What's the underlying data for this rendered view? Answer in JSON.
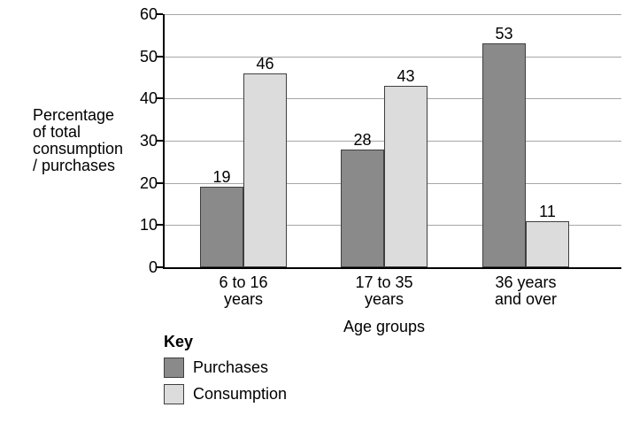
{
  "chart_data": {
    "type": "bar",
    "categories": [
      "6 to 16\nyears",
      "17 to 35\nyears",
      "36 years\nand over"
    ],
    "series": [
      {
        "name": "Purchases",
        "color": "#8a8a8a",
        "values": [
          19,
          28,
          53
        ]
      },
      {
        "name": "Consumption",
        "color": "#dcdcdc",
        "values": [
          46,
          43,
          11
        ]
      }
    ],
    "xlabel": "Age groups",
    "ylabel": "Percentage\nof total\nconsumption\n/ purchases",
    "ylim": [
      0,
      60
    ],
    "ytick_step": 10,
    "grid": true,
    "legend_title": "Key",
    "legend_position": "bottom-left",
    "colors": {
      "bar_border": "#3f3f3f",
      "gridline": "#a6a6a6",
      "axis": "#000000",
      "text": "#000000",
      "background": "#ffffff"
    }
  }
}
